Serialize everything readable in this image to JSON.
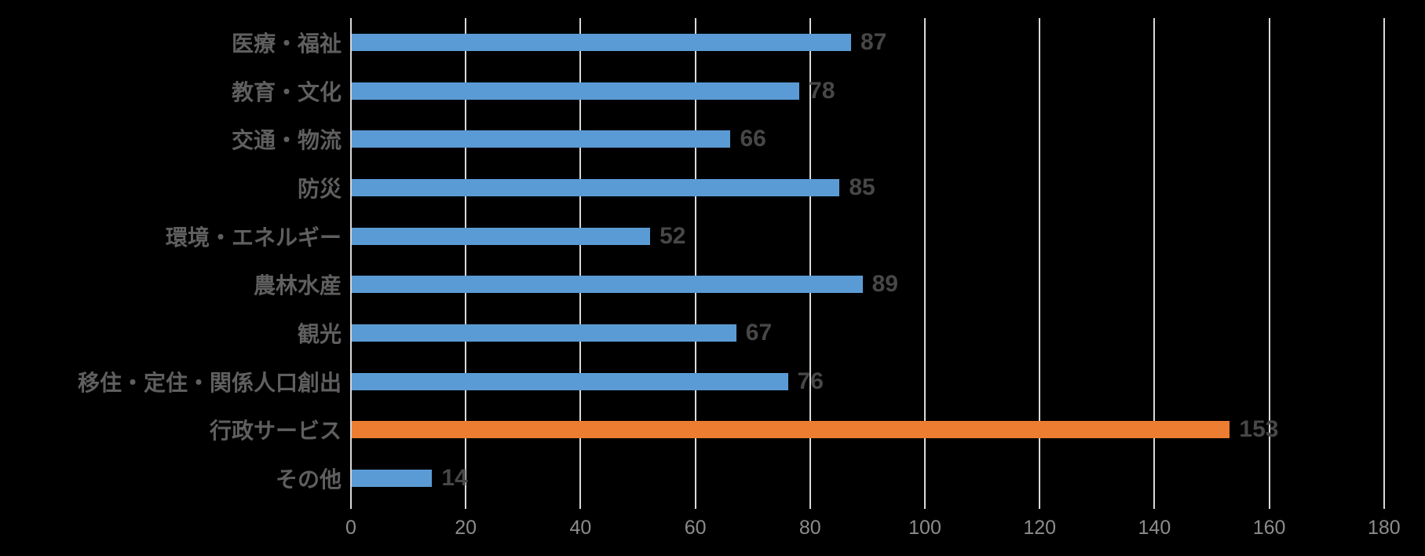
{
  "chart_data": {
    "type": "bar",
    "orientation": "horizontal",
    "title": "",
    "xlabel": "",
    "ylabel": "",
    "categories": [
      "医療・福祉",
      "教育・文化",
      "交通・物流",
      "防災",
      "環境・エネルギー",
      "農林水産",
      "観光",
      "移住・定住・関係人口創出",
      "行政サービス",
      "その他"
    ],
    "values": [
      87,
      78,
      66,
      85,
      52,
      89,
      67,
      76,
      153,
      14
    ],
    "bar_colors": [
      "#5b9bd5",
      "#5b9bd5",
      "#5b9bd5",
      "#5b9bd5",
      "#5b9bd5",
      "#5b9bd5",
      "#5b9bd5",
      "#5b9bd5",
      "#ed7d31",
      "#5b9bd5"
    ],
    "highlight_category": "行政サービス",
    "data_labels": [
      87,
      78,
      66,
      85,
      52,
      89,
      67,
      76,
      153,
      14
    ],
    "xlim": [
      0,
      180
    ],
    "x_ticks": [
      0,
      20,
      40,
      60,
      80,
      100,
      120,
      140,
      160,
      180
    ],
    "grid": true,
    "legend": false,
    "colors": {
      "default_bar": "#5b9bd5",
      "highlight_bar": "#ed7d31",
      "gridline": "#d9d9d9",
      "axis_line": "#d9d9d9",
      "tick_label": "#8c8c8c",
      "category_label": "#5f5f5f",
      "value_label": "#474747",
      "background": "#000000"
    }
  }
}
